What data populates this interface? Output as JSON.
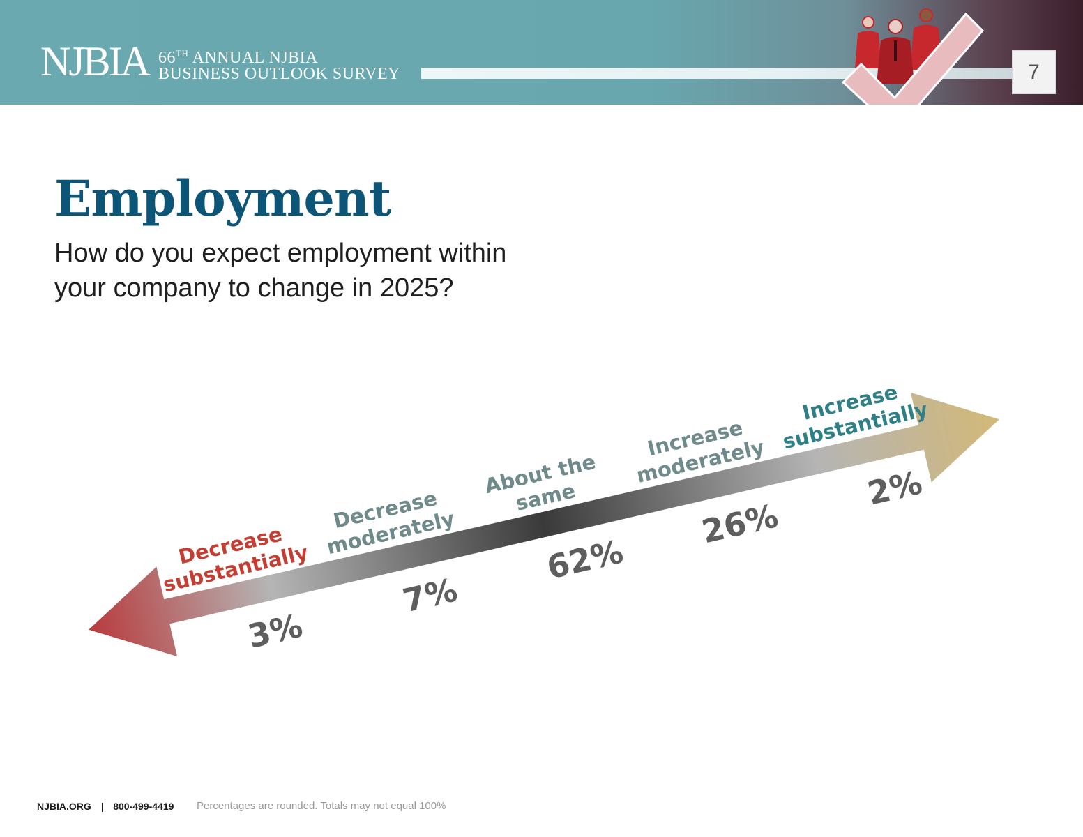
{
  "header": {
    "logo": "NJBIA",
    "survey_line1_num": "66",
    "survey_line1_sup": "TH",
    "survey_line1_rest": " ANNUAL NJBIA",
    "survey_line2": "BUSINESS OUTLOOK SURVEY",
    "page_number": "7",
    "colors": {
      "banner": "#6aa9b0",
      "accent_red": "#c2282e"
    }
  },
  "title": "Employment",
  "question": "How do you expect employment within your company to change in 2025?",
  "chart_data": {
    "type": "bar",
    "categories": [
      "Decrease substantially",
      "Decrease moderately",
      "About the same",
      "Increase moderately",
      "Increase substantially"
    ],
    "category_lines": [
      [
        "Decrease",
        "substantially"
      ],
      [
        "Decrease",
        "moderately"
      ],
      [
        "About the",
        "same"
      ],
      [
        "Increase",
        "moderately"
      ],
      [
        "Increase",
        "substantially"
      ]
    ],
    "values": [
      3,
      7,
      62,
      26,
      2
    ],
    "value_labels": [
      "3%",
      "7%",
      "62%",
      "26%",
      "2%"
    ],
    "label_colors": [
      "#c53e33",
      "#6f8a8b",
      "#6f8a8b",
      "#6f8a8b",
      "#2f7f86"
    ],
    "arrow_colors": [
      "#b83a3c",
      "#b5b5b5",
      "#3a3a3a",
      "#b5b5b5",
      "#d3b877"
    ]
  },
  "footer": {
    "site": "NJBIA.ORG",
    "separator": "|",
    "phone": "800-499-4419",
    "note": "Percentages are rounded. Totals may not equal 100%"
  }
}
